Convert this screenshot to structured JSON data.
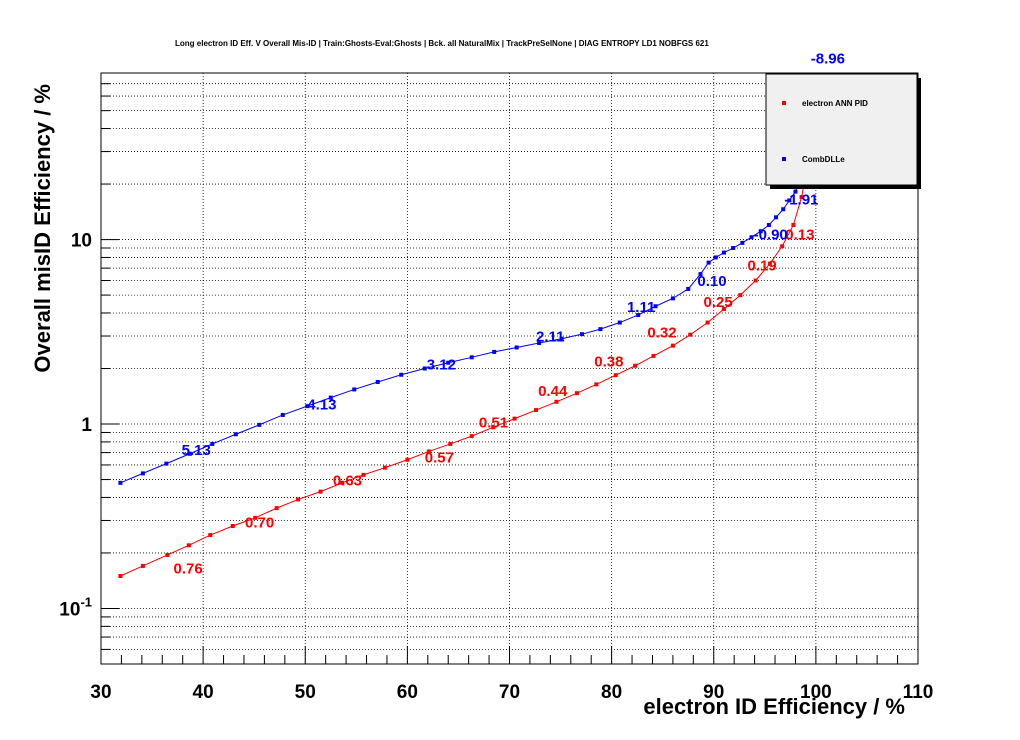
{
  "chart_data": {
    "type": "line",
    "title": "Long electron ID Eff. V Overall Mis-ID | Train:Ghosts-Eval:Ghosts | Bck. all NaturalMix | TrackPreSelNone | DIAG ENTROPY LD1 NOBFGS 621",
    "xlabel": "electron ID Efficiency / %",
    "ylabel": "Overall misID Efficiency / %",
    "xlim": [
      30,
      110
    ],
    "ylim": [
      0.05,
      80
    ],
    "y_scale": "log",
    "grid": true,
    "legend_position": "top-right",
    "x_ticks": [
      "30",
      "40",
      "50",
      "60",
      "70",
      "80",
      "90",
      "100",
      "110"
    ],
    "y_ticks": [
      {
        "value": 10,
        "mantissa": "10",
        "exp": ""
      },
      {
        "value": 1,
        "mantissa": "1",
        "exp": ""
      },
      {
        "value": 0.1,
        "mantissa": "10",
        "exp": "-1"
      }
    ],
    "series": [
      {
        "name": "electron ANN PID",
        "color": "#ff0000",
        "x": [
          31.9,
          34.1,
          36.5,
          38.6,
          40.7,
          42.9,
          45.1,
          47.2,
          49.3,
          51.5,
          53.6,
          55.7,
          57.8,
          60.0,
          62.1,
          64.2,
          66.3,
          68.4,
          70.5,
          72.6,
          74.6,
          76.6,
          78.5,
          80.4,
          82.3,
          84.1,
          86.0,
          87.7,
          89.4,
          91.0,
          92.6,
          94.1,
          95.5,
          96.7,
          97.8,
          98.6,
          99.2
        ],
        "y": [
          0.15,
          0.17,
          0.195,
          0.22,
          0.25,
          0.28,
          0.31,
          0.35,
          0.39,
          0.43,
          0.48,
          0.53,
          0.58,
          0.64,
          0.71,
          0.78,
          0.86,
          0.96,
          1.07,
          1.19,
          1.32,
          1.47,
          1.64,
          1.84,
          2.07,
          2.34,
          2.66,
          3.05,
          3.55,
          4.2,
          5.0,
          6.0,
          7.4,
          9.2,
          12.0,
          17.0,
          25.0
        ],
        "labels": [
          {
            "x": 37.1,
            "y": 0.155,
            "text": "0.76"
          },
          {
            "x": 44.1,
            "y": 0.275,
            "text": "0.70"
          },
          {
            "x": 52.7,
            "y": 0.465,
            "text": "0.63"
          },
          {
            "x": 61.7,
            "y": 0.62,
            "text": "0.57"
          },
          {
            "x": 67.0,
            "y": 0.96,
            "text": "0.51"
          },
          {
            "x": 72.8,
            "y": 1.42,
            "text": "0.44"
          },
          {
            "x": 78.3,
            "y": 2.05,
            "text": "0.38"
          },
          {
            "x": 83.5,
            "y": 2.95,
            "text": "0.32"
          },
          {
            "x": 89.0,
            "y": 4.3,
            "text": "0.25"
          },
          {
            "x": 93.3,
            "y": 6.8,
            "text": "0.19"
          },
          {
            "x": 97.0,
            "y": 10.0,
            "text": "0.13"
          }
        ]
      },
      {
        "name": "CombDLLe",
        "color": "#0000ff",
        "x": [
          31.9,
          34.1,
          36.4,
          38.7,
          40.9,
          43.2,
          45.5,
          47.8,
          50.2,
          52.5,
          54.8,
          57.1,
          59.4,
          61.7,
          64.0,
          66.3,
          68.5,
          70.7,
          72.9,
          75.1,
          77.1,
          78.9,
          80.8,
          82.6,
          84.3,
          86.0,
          87.5,
          88.7,
          89.5,
          90.2,
          91.0,
          91.9,
          92.8,
          93.7,
          94.6,
          95.4,
          96.1,
          96.8,
          97.4,
          98.0,
          98.6,
          99.0
        ],
        "y": [
          0.48,
          0.54,
          0.61,
          0.69,
          0.78,
          0.88,
          0.99,
          1.12,
          1.25,
          1.39,
          1.54,
          1.69,
          1.85,
          2.0,
          2.15,
          2.3,
          2.46,
          2.6,
          2.75,
          2.9,
          3.07,
          3.27,
          3.55,
          3.9,
          4.35,
          4.8,
          5.4,
          6.5,
          7.5,
          8.0,
          8.5,
          9.0,
          9.6,
          10.3,
          11.1,
          12.0,
          13.2,
          14.6,
          16.3,
          18.2,
          22.0,
          45.0
        ],
        "labels": [
          {
            "x": 37.9,
            "y": 0.68,
            "text": "5.13"
          },
          {
            "x": 50.2,
            "y": 1.2,
            "text": "4.13"
          },
          {
            "x": 61.9,
            "y": 1.98,
            "text": "3.12"
          },
          {
            "x": 72.6,
            "y": 2.8,
            "text": "2.11"
          },
          {
            "x": 81.5,
            "y": 4.05,
            "text": "1.11"
          },
          {
            "x": 88.4,
            "y": 5.6,
            "text": "0.10"
          },
          {
            "x": 93.9,
            "y": 10.0,
            "text": "-0.90"
          },
          {
            "x": 96.9,
            "y": 15.5,
            "text": "-1.91"
          },
          {
            "x": 99.5,
            "y": 90.0,
            "text": "-8.96"
          }
        ]
      }
    ]
  }
}
